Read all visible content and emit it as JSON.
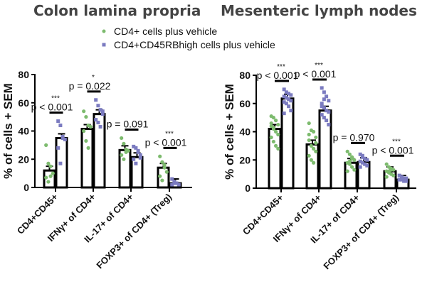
{
  "legend": [
    {
      "label": "CD4+ cells plus vehicle",
      "color": "#7dbb6e",
      "marker": "circle"
    },
    {
      "label": "CD4+CD45RBhigh cells plus vehicle",
      "color": "#7b7bc0",
      "marker": "square"
    }
  ],
  "chart_data": [
    {
      "type": "bar",
      "title": "Colon lamina propria",
      "ylabel": "% of cells + SEM",
      "ylim": [
        0,
        80
      ],
      "yticks": [
        "0",
        "20",
        "40",
        "60",
        "80"
      ],
      "categories": [
        "CD4+CD45+",
        "IFNγ+ of CD4+",
        "IL-17+ of CD4+",
        "FOXP3+ of CD4+ (Treg)"
      ],
      "series": [
        {
          "name": "CD4+ cells plus vehicle",
          "values": [
            12,
            41.5,
            26.5,
            14
          ],
          "points": [
            [
              30,
              17,
              15,
              10,
              7,
              4,
              8
            ],
            [
              54,
              50,
              44,
              43,
              40,
              33,
              28
            ],
            [
              35,
              31,
              27,
              26,
              23,
              20,
              25
            ],
            [
              22,
              18,
              16,
              11,
              8,
              5,
              14
            ]
          ]
        },
        {
          "name": "CD4+CD45RBhigh cells plus vehicle",
          "values": [
            35,
            52,
            21.5,
            3
          ],
          "points": [
            [
              47,
              44,
              35,
              34,
              28,
              17,
              36
            ],
            [
              62,
              58,
              55,
              54,
              48,
              46,
              43,
              52
            ],
            [
              29,
              28,
              26,
              23,
              20,
              17,
              25,
              21
            ],
            [
              6,
              4,
              3,
              2,
              2,
              3
            ]
          ]
        }
      ],
      "annotations": [
        {
          "p": "p < 0.001",
          "stars": "***"
        },
        {
          "p": "p = 0.022",
          "stars": "*"
        },
        {
          "p": "p = 0.091",
          "stars": ""
        },
        {
          "p": "p < 0.001",
          "stars": "***"
        }
      ]
    },
    {
      "type": "bar",
      "title": "Mesenteric lymph nodes",
      "ylabel": "% of cells + SEM",
      "ylim": [
        0,
        80
      ],
      "yticks": [
        "0",
        "20",
        "40",
        "60",
        "80"
      ],
      "categories": [
        "CD4+CD45+",
        "IFNγ+ of CD4+",
        "IL-17+ of CD4+",
        "FOXP3+ of CD4+ (Treg)"
      ],
      "series": [
        {
          "name": "CD4+ cells plus vehicle",
          "values": [
            42,
            31,
            18,
            12
          ],
          "points": [
            [
              51,
              50,
              48,
              45,
              44,
              42,
              40,
              38,
              36,
              33,
              30,
              28,
              46,
              43
            ],
            [
              46,
              41,
              40,
              36,
              34,
              30,
              28,
              26,
              23,
              20,
              18,
              32,
              38
            ],
            [
              26,
              24,
              22,
              20,
              18,
              17,
              15,
              13,
              12,
              19,
              21
            ],
            [
              17,
              15,
              14,
              13,
              12,
              11,
              10,
              9,
              8,
              12,
              13
            ]
          ]
        },
        {
          "name": "CD4+CD45RBhigh cells plus vehicle",
          "values": [
            63.5,
            55,
            18.5,
            6
          ],
          "points": [
            [
              70,
              68,
              67,
              66,
              65,
              64,
              63,
              62,
              61,
              60,
              58,
              55,
              53,
              64
            ],
            [
              71,
              68,
              65,
              62,
              60,
              57,
              55,
              54,
              52,
              50,
              48,
              45,
              58,
              63
            ],
            [
              24,
              23,
              21,
              20,
              19,
              18,
              17,
              16,
              15,
              22
            ],
            [
              9,
              8,
              7,
              7,
              6,
              6,
              5,
              5,
              6
            ]
          ]
        }
      ],
      "annotations": [
        {
          "p": "p < 0.001",
          "stars": "***"
        },
        {
          "p": "p < 0.001",
          "stars": "***"
        },
        {
          "p": "p = 0.970",
          "stars": ""
        },
        {
          "p": "p < 0.001",
          "stars": "***"
        }
      ]
    }
  ]
}
